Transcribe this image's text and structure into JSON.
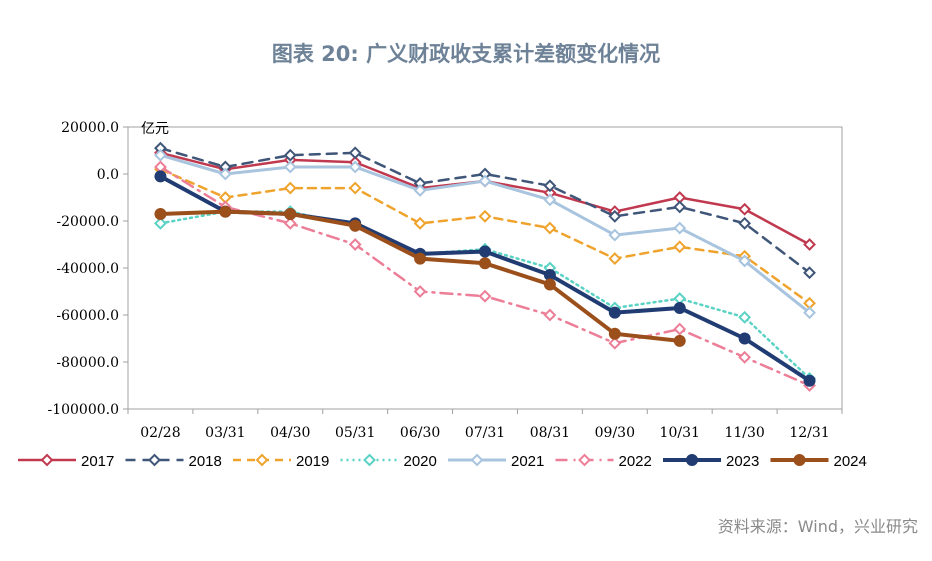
{
  "title": "图表 20: 广义财政收支累计差额变化情况",
  "source": "资料来源：Wind，兴业研究",
  "chart_data": {
    "type": "line",
    "title": "图表 20: 广义财政收支累计差额变化情况",
    "unit": "亿元",
    "categories": [
      "02/28",
      "03/31",
      "04/30",
      "05/31",
      "06/30",
      "07/31",
      "08/31",
      "09/30",
      "10/31",
      "11/30",
      "12/31"
    ],
    "ylim": [
      -100000,
      20000
    ],
    "yticks": [
      20000,
      0,
      -20000,
      -40000,
      -60000,
      -80000,
      -100000
    ],
    "ytick_labels": [
      "20000.0",
      "0.0",
      "-20000.0",
      "-40000.0",
      "-60000.0",
      "-80000.0",
      "-100000.0"
    ],
    "legend_position": "bottom",
    "grid": false,
    "series": [
      {
        "name": "2017",
        "color": "#c0394f",
        "dash": "",
        "width": 2.5,
        "values": [
          9000,
          2000,
          6000,
          5000,
          -6000,
          -3000,
          -8000,
          -16000,
          -10000,
          -15000,
          -30000
        ]
      },
      {
        "name": "2018",
        "color": "#3f5678",
        "dash": "10,7",
        "width": 2.5,
        "values": [
          11000,
          3000,
          8000,
          9000,
          -4000,
          0,
          -5000,
          -18000,
          -14000,
          -21000,
          -42000
        ]
      },
      {
        "name": "2019",
        "color": "#f0a32c",
        "dash": "8,6",
        "width": 2.5,
        "values": [
          2000,
          -10000,
          -6000,
          -6000,
          -21000,
          -18000,
          -23000,
          -36000,
          -31000,
          -35000,
          -55000
        ]
      },
      {
        "name": "2020",
        "color": "#5ad2c4",
        "dash": "2,4",
        "width": 2.5,
        "values": [
          -21000,
          -16000,
          -16000,
          -22000,
          -34000,
          -32000,
          -40000,
          -57000,
          -53000,
          -61000,
          -87000
        ]
      },
      {
        "name": "2021",
        "color": "#a8c4de",
        "dash": "",
        "width": 3,
        "values": [
          8000,
          0,
          3000,
          3000,
          -7000,
          -3000,
          -11000,
          -26000,
          -23000,
          -37000,
          -59000
        ]
      },
      {
        "name": "2022",
        "color": "#ec7e97",
        "dash": "12,6,2,6",
        "width": 2.5,
        "values": [
          3000,
          -14000,
          -21000,
          -30000,
          -50000,
          -52000,
          -60000,
          -72000,
          -66000,
          -78000,
          -90000
        ]
      },
      {
        "name": "2023",
        "color": "#213c72",
        "dash": "",
        "width": 4,
        "values": [
          -1000,
          -16000,
          -17000,
          -21000,
          -34000,
          -33000,
          -43000,
          -59000,
          -57000,
          -70000,
          -88000
        ]
      },
      {
        "name": "2024",
        "color": "#9b4f1b",
        "dash": "",
        "width": 4,
        "values": [
          -17000,
          -16000,
          -17000,
          -22000,
          -36000,
          -38000,
          -47000,
          -68000,
          -71000,
          null,
          null
        ]
      }
    ]
  }
}
